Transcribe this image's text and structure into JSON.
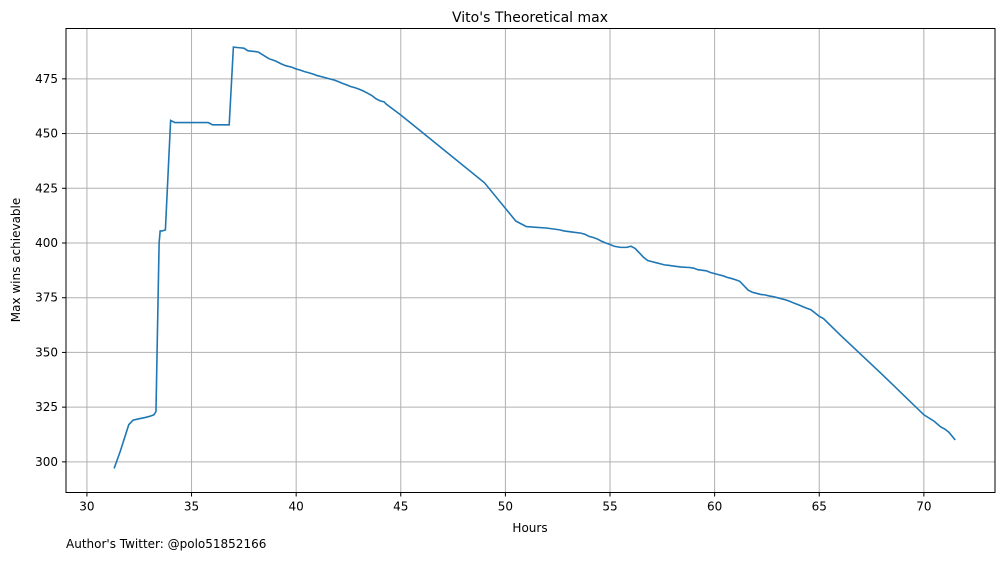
{
  "chart_data": {
    "type": "line",
    "title": "Vito's Theoretical max",
    "xlabel": "Hours",
    "ylabel": "Max wins achievable",
    "xlim": [
      29.0,
      73.4
    ],
    "ylim": [
      286,
      498
    ],
    "xticks": [
      30,
      35,
      40,
      45,
      50,
      55,
      60,
      65,
      70
    ],
    "yticks": [
      300,
      325,
      350,
      375,
      400,
      425,
      450,
      475
    ],
    "grid": true,
    "line_color": "#1f77b4",
    "series": [
      {
        "x": [
          31.3,
          31.6,
          32.0,
          32.2,
          32.4,
          32.8,
          33.0,
          33.2,
          33.3,
          33.45,
          33.5,
          33.6,
          33.75,
          33.95,
          34.0,
          34.2,
          34.5,
          35.0,
          35.5,
          35.8,
          36.0,
          36.3,
          36.6,
          36.8,
          37.0,
          37.3,
          37.5,
          37.7,
          38.0,
          38.2,
          38.4,
          38.7,
          39.0,
          39.3,
          39.5,
          39.8,
          40.0,
          40.2,
          40.4,
          40.6,
          40.8,
          41.0,
          41.2,
          41.4,
          41.6,
          41.8,
          42.0,
          42.2,
          42.4,
          42.6,
          42.8,
          43.0,
          43.2,
          43.4,
          43.6,
          43.8,
          44.0,
          44.2,
          44.3,
          45.0,
          47.0,
          49.0,
          50.5,
          50.8,
          51.0,
          52.0,
          52.6,
          52.8,
          53.2,
          53.6,
          53.8,
          54.0,
          54.2,
          54.4,
          54.6,
          54.8,
          55.0,
          55.2,
          55.5,
          55.8,
          56.0,
          56.2,
          56.4,
          56.6,
          56.8,
          57.0,
          57.2,
          57.4,
          57.6,
          57.8,
          58.0,
          58.4,
          58.8,
          59.0,
          59.2,
          59.6,
          59.8,
          60.0,
          60.2,
          60.4,
          60.6,
          60.8,
          61.0,
          61.2,
          61.4,
          61.6,
          61.8,
          62.0,
          62.2,
          62.4,
          62.6,
          62.8,
          63.0,
          63.2,
          63.4,
          63.6,
          63.8,
          64.0,
          64.2,
          64.4,
          64.6,
          64.8,
          65.0,
          65.2,
          66.0,
          68.0,
          70.0,
          70.5,
          70.8,
          71.0,
          71.2,
          71.5
        ],
        "y": [
          297,
          305,
          317,
          319,
          319.5,
          320.3,
          320.8,
          321.5,
          323,
          400,
          405.5,
          405.5,
          406,
          446,
          456,
          455,
          455,
          455,
          455,
          455,
          454,
          454,
          454,
          454,
          489.5,
          489.2,
          489.0,
          487.8,
          487.5,
          487.2,
          486.0,
          484.2,
          483.2,
          481.8,
          481.0,
          480.3,
          479.5,
          479.0,
          478.3,
          477.8,
          477.2,
          476.5,
          476.0,
          475.5,
          475.0,
          474.5,
          473.8,
          473.0,
          472.3,
          471.5,
          471.0,
          470.3,
          469.5,
          468.5,
          467.5,
          466.0,
          465.0,
          464.5,
          463.5,
          458.5,
          443.0,
          427.5,
          410.0,
          408.5,
          407.5,
          406.8,
          406.0,
          405.5,
          405.0,
          404.5,
          404.0,
          403.0,
          402.5,
          401.8,
          400.8,
          400.0,
          399.3,
          398.5,
          398.0,
          398.0,
          398.5,
          397.5,
          395.5,
          393.5,
          392.0,
          391.5,
          391.0,
          390.5,
          390.0,
          389.8,
          389.5,
          389.0,
          388.8,
          388.5,
          387.8,
          387.3,
          386.5,
          386.0,
          385.5,
          385.0,
          384.3,
          383.8,
          383.2,
          382.5,
          380.5,
          378.5,
          377.5,
          377.0,
          376.5,
          376.3,
          375.8,
          375.5,
          375.0,
          374.5,
          374.0,
          373.3,
          372.5,
          371.8,
          371.0,
          370.2,
          369.5,
          368.0,
          366.5,
          365.5,
          358.0,
          340.0,
          321.5,
          318.5,
          316.0,
          315.0,
          313.5,
          310.0
        ]
      }
    ],
    "footer_note": "Author's Twitter: @polo51852166"
  }
}
